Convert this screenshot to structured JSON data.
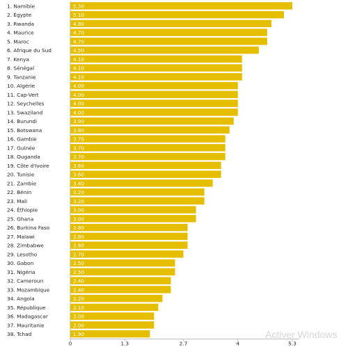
{
  "chart_data": {
    "type": "bar",
    "orientation": "horizontal",
    "categories": [
      "1. Namibie",
      "2. Égypte",
      "3. Rwanda",
      "4. Maurice",
      "5. Maroc",
      "6. Afrique du Sud",
      "7. Kenya",
      "8. Sénégal",
      "9. Tanzanie",
      "10. Algérie",
      "11. Cap-Vert",
      "12. Seychelles",
      "13. Swaziland",
      "14. Burundi",
      "15. Botswana",
      "16. Gambie",
      "17. Guinée",
      "18. Ouganda",
      "19. Côte d'Ivoire",
      "20. Tunisie",
      "21. Zambie",
      "22. Bénin",
      "23. Mali",
      "24. Éthiopie",
      "25. Ghana",
      "26. Burkina Faso",
      "27. Malawi",
      "28. Zimbabwe",
      "29. Lesotho",
      "30. Gabon",
      "31. Nigéria",
      "32. Cameroun",
      "33. Mozambique",
      "34. Angola",
      "35. République",
      "36. Madagascar",
      "37. Mauritanie",
      "38. Tchad"
    ],
    "values": [
      5.3,
      5.1,
      4.8,
      4.7,
      4.7,
      4.5,
      4.1,
      4.1,
      4.1,
      4.0,
      4.0,
      4.0,
      4.0,
      3.9,
      3.8,
      3.7,
      3.7,
      3.7,
      3.6,
      3.6,
      3.4,
      3.2,
      3.2,
      3.0,
      3.0,
      2.8,
      2.8,
      2.8,
      2.7,
      2.5,
      2.5,
      2.4,
      2.4,
      2.2,
      2.1,
      2.0,
      2.0,
      1.9
    ],
    "value_labels": [
      "5.30",
      "5.10",
      "4.80",
      "4.70",
      "4.70",
      "4.50",
      "4.10",
      "4.10",
      "4.10",
      "4.00",
      "4.00",
      "4.00",
      "4.00",
      "3.90",
      "3.80",
      "3.70",
      "3.70",
      "3.70",
      "3.60",
      "3.60",
      "3.40",
      "3.20",
      "3.20",
      "3.00",
      "3.00",
      "2.80",
      "2.80",
      "2.80",
      "2.70",
      "2.50",
      "2.50",
      "2.40",
      "2.40",
      "2.20",
      "2.10",
      "2.00",
      "2.00",
      "1.90"
    ],
    "x_ticks": [
      0,
      1.3,
      2.7,
      4,
      5.3
    ],
    "x_tick_labels": [
      "0",
      "1.3",
      "2.7",
      "4",
      "5.3"
    ],
    "xlim": [
      0,
      5.3
    ],
    "bar_color": "#e6be00",
    "grid": false,
    "title": "",
    "xlabel": "",
    "ylabel": ""
  },
  "watermark": "Activer Windows"
}
